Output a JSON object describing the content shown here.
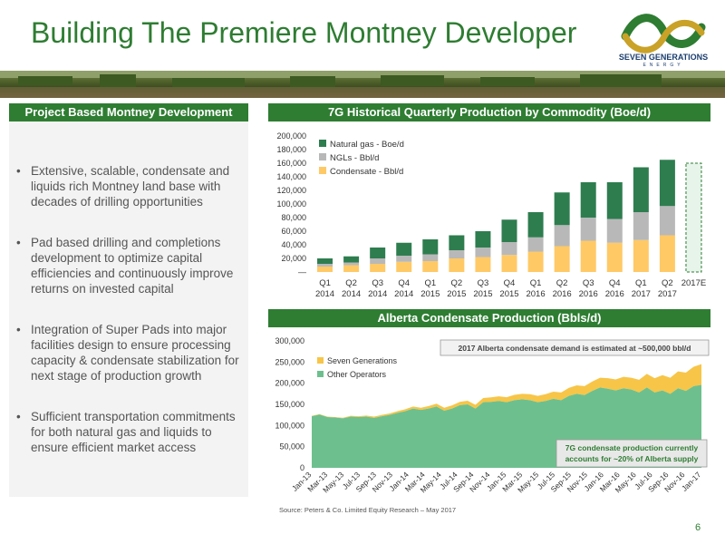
{
  "title": "Building The Premiere Montney Developer",
  "logo": {
    "name": "SEVEN GENERATIONS",
    "sub": "ENERGY"
  },
  "left_panel": {
    "header": "Project Based Montney Development",
    "bullets": [
      "Extensive, scalable, condensate and liquids rich Montney land base with decades of drilling opportunities",
      "Pad based drilling and completions development to optimize capital efficiencies and continuously improve returns on invested capital",
      "Integration of Super Pads into major facilities design to ensure processing capacity & condensate stabilization for next stage of production growth",
      "Sufficient transportation commitments for both natural gas and liquids to ensure efficient market access"
    ]
  },
  "colors": {
    "green": "#2e7d32",
    "natgas": "#2e7d4f",
    "ngl": "#b8b8b8",
    "condensate": "#ffc966",
    "seven_gen": "#f7c548",
    "other_ops": "#6dc08e"
  },
  "source": "Source: Peters & Co. Limited Equity Research – May 2017",
  "page_number": "6",
  "chart_data": [
    {
      "type": "bar",
      "title": "7G Historical Quarterly Production by Commodity  (Boe/d)",
      "categories": [
        [
          "Q1",
          "2014"
        ],
        [
          "Q2",
          "2014"
        ],
        [
          "Q3",
          "2014"
        ],
        [
          "Q4",
          "2014"
        ],
        [
          "Q1",
          "2015"
        ],
        [
          "Q2",
          "2015"
        ],
        [
          "Q3",
          "2015"
        ],
        [
          "Q4",
          "2015"
        ],
        [
          "Q1",
          "2016"
        ],
        [
          "Q2",
          "2016"
        ],
        [
          "Q3",
          "2016"
        ],
        [
          "Q4",
          "2016"
        ],
        [
          "Q1",
          "2017"
        ],
        [
          "Q2",
          "2017"
        ],
        [
          "2017E",
          ""
        ]
      ],
      "ylim": [
        0,
        200000
      ],
      "yticks": [
        "200,000",
        "180,000",
        "160,000",
        "140,000",
        "120,000",
        "100,000",
        "80,000",
        "60,000",
        "40,000",
        "20,000",
        "—"
      ],
      "series": [
        {
          "name": "Condensate - Bbl/d",
          "values": [
            8000,
            10000,
            12000,
            15000,
            16000,
            20000,
            22000,
            25000,
            30000,
            38000,
            46000,
            43000,
            47000,
            54000,
            null
          ]
        },
        {
          "name": "NGLs - Bbl/d",
          "values": [
            4000,
            4000,
            8000,
            9000,
            10000,
            12000,
            14000,
            19000,
            21000,
            31000,
            34000,
            35000,
            41000,
            43000,
            null
          ]
        },
        {
          "name": "Natural gas - Boe/d",
          "values": [
            8000,
            9000,
            16000,
            19000,
            22000,
            22000,
            24000,
            33000,
            37000,
            48000,
            52000,
            54000,
            66000,
            68000,
            null
          ]
        }
      ],
      "estimate": {
        "category": "2017E",
        "value": 160000
      },
      "legend": "top-left"
    },
    {
      "type": "area",
      "title": "Alberta Condensate Production (Bbls/d)",
      "ylim": [
        0,
        300000
      ],
      "yticks": [
        "300,000",
        "250,000",
        "200,000",
        "150,000",
        "100,000",
        "50,000",
        "0"
      ],
      "xticks": [
        "Jan-13",
        "Mar-13",
        "May-13",
        "Jul-13",
        "Sep-13",
        "Nov-13",
        "Jan-14",
        "Mar-14",
        "May-14",
        "Jul-14",
        "Sep-14",
        "Nov-14",
        "Jan-15",
        "Mar-15",
        "May-15",
        "Jul-15",
        "Sep-15",
        "Nov-15",
        "Jan-16",
        "Mar-16",
        "May-16",
        "Jul-16",
        "Sep-16",
        "Nov-16",
        "Jan-17"
      ],
      "series": [
        {
          "name": "Seven Generations",
          "values": [
            1000,
            1000,
            1000,
            1000,
            1500,
            2000,
            2000,
            2500,
            3000,
            3000,
            3500,
            4000,
            4500,
            5000,
            5000,
            6000,
            6500,
            7000,
            7500,
            8000,
            8500,
            9000,
            10000,
            10500,
            11000,
            12000,
            12500,
            13000,
            14000,
            15000,
            16000,
            17000,
            18000,
            19000,
            20000,
            21000,
            22000,
            23000,
            25000,
            26000,
            27000,
            28000,
            30000,
            32000,
            34000,
            36000,
            38000,
            40000,
            43000,
            46000,
            49000
          ]
        },
        {
          "name": "Other Operators",
          "values": [
            122000,
            126000,
            120000,
            119000,
            117000,
            121000,
            120000,
            121000,
            118000,
            122000,
            125000,
            130000,
            134000,
            140000,
            137000,
            140000,
            145000,
            135000,
            140000,
            148000,
            150000,
            140000,
            155000,
            156000,
            158000,
            155000,
            160000,
            162000,
            160000,
            155000,
            158000,
            163000,
            160000,
            170000,
            175000,
            172000,
            182000,
            190000,
            187000,
            183000,
            188000,
            185000,
            178000,
            190000,
            178000,
            183000,
            175000,
            188000,
            182000,
            193000,
            196000
          ]
        }
      ],
      "annotations": [
        "2017 Alberta condensate demand is estimated at ~500,000 bbl/d",
        "7G condensate production currently accounts for ~20% of Alberta supply"
      ],
      "legend": "top-left"
    }
  ]
}
